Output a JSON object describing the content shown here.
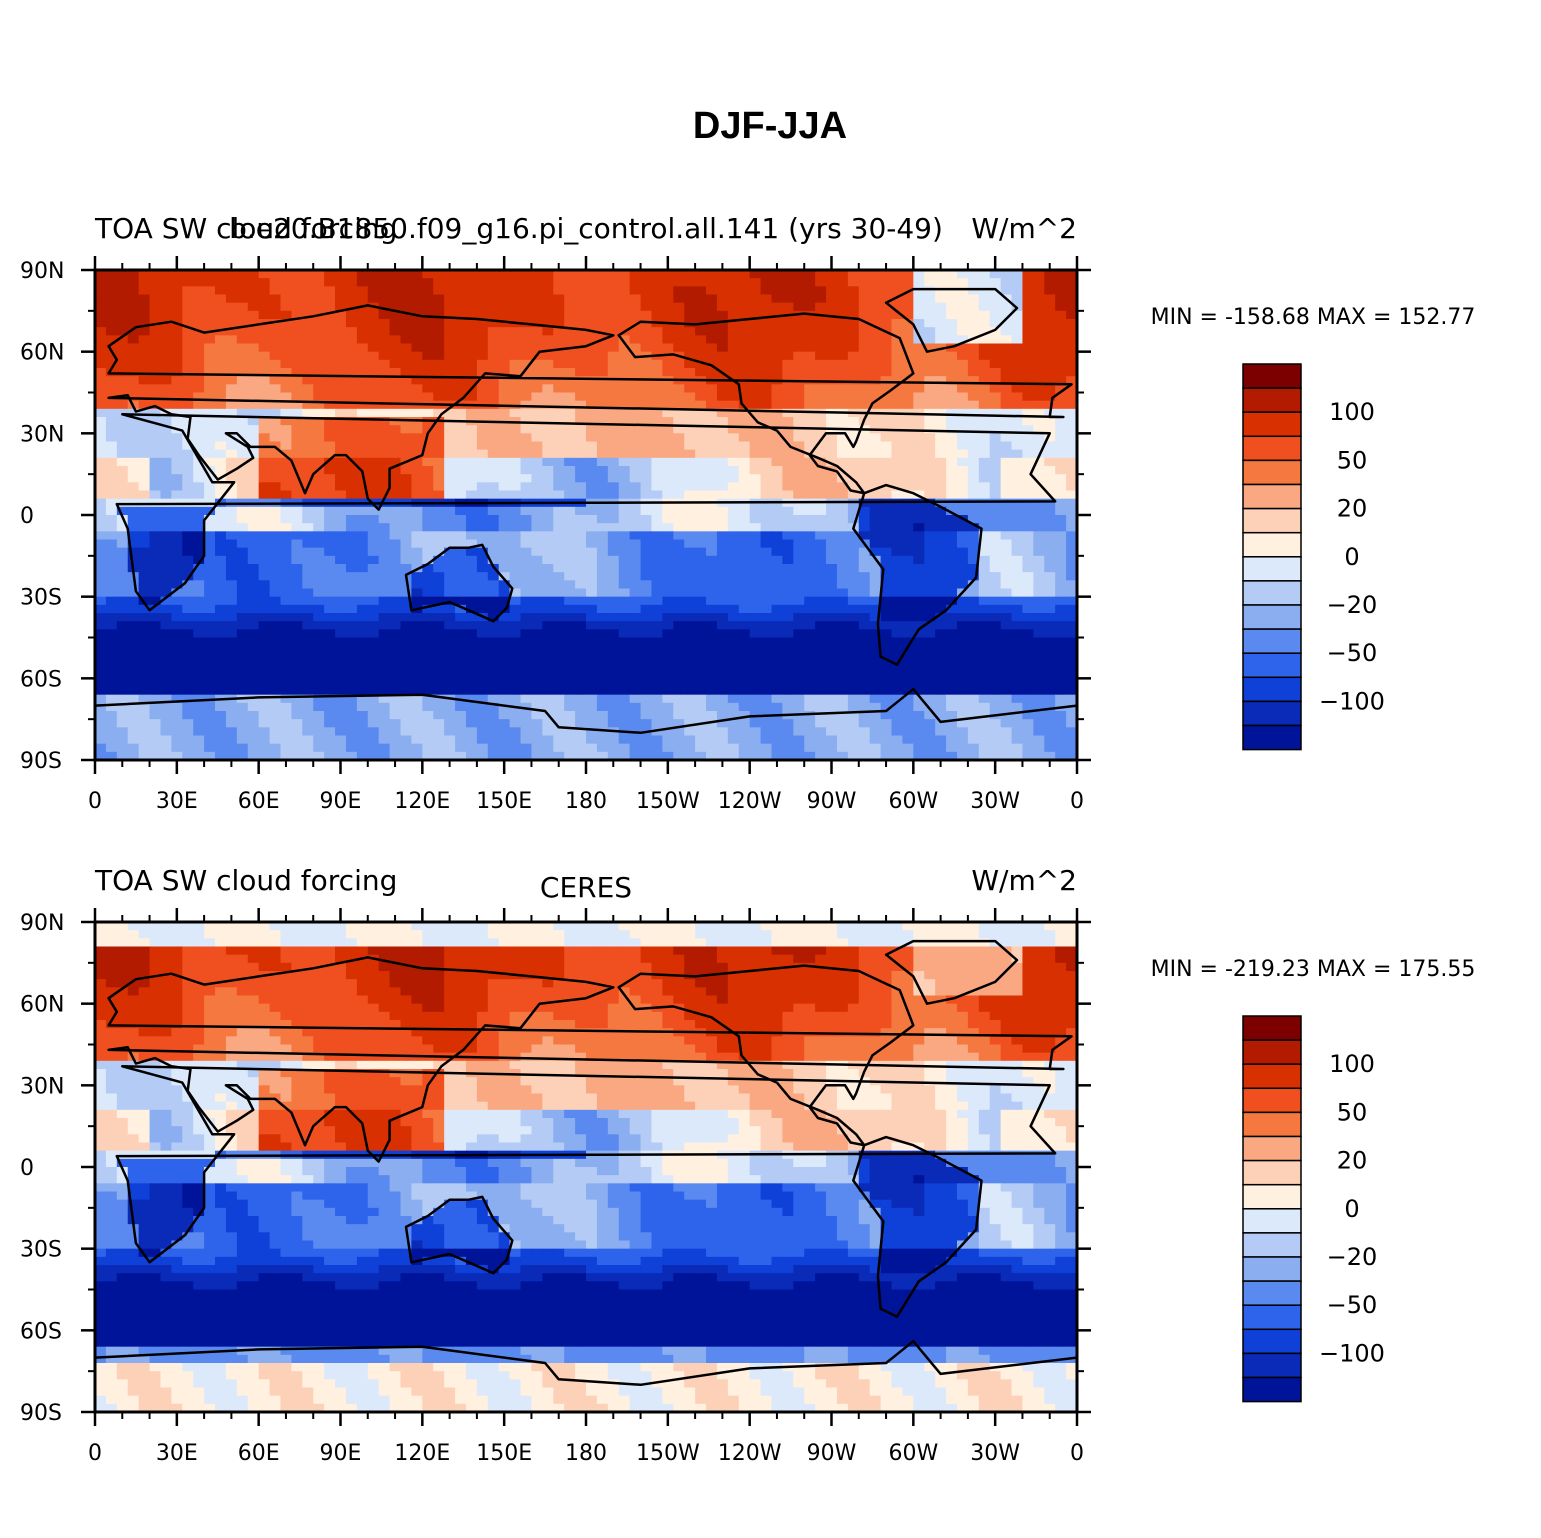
{
  "figure": {
    "title": "DJF-JJA"
  },
  "panels": [
    {
      "id": "model",
      "left_label": "TOA SW cloud forcing",
      "center_label": "b.e20.B1850.f09_g16.pi_control.all.141 (yrs 30-49)",
      "right_label": "W/m^2",
      "min_max_text": "MIN = -158.68  MAX = 152.77",
      "style": "model"
    },
    {
      "id": "obs",
      "left_label": "TOA SW cloud forcing",
      "center_label": "CERES",
      "right_label": "W/m^2",
      "min_max_text": "MIN = -219.23  MAX = 175.55",
      "style": "obs"
    }
  ],
  "axes": {
    "lat_ticks": [
      "90N",
      "60N",
      "30N",
      "0",
      "30S",
      "60S",
      "90S"
    ],
    "lon_ticks": [
      "0",
      "30E",
      "60E",
      "90E",
      "120E",
      "150E",
      "180",
      "150W",
      "120W",
      "90W",
      "60W",
      "30W",
      "0"
    ]
  },
  "colorbar": {
    "labels": [
      "100",
      "50",
      "20",
      "0",
      "-20",
      "-50",
      "-100"
    ],
    "colors": [
      "#7d0000",
      "#b31b00",
      "#d83000",
      "#f05020",
      "#f57840",
      "#f9a882",
      "#fdd0b8",
      "#fff0e0",
      "#dce9fb",
      "#b4ccf5",
      "#8aaef0",
      "#5a8af0",
      "#2e64ec",
      "#0f40d8",
      "#0a2ab8",
      "#00149a"
    ]
  },
  "chart_data": [
    {
      "type": "heatmap",
      "title": "DJF-JJA",
      "name": "TOA SW cloud forcing — b.e20.B1850.f09_g16.pi_control.all.141 (yrs 30-49)",
      "units": "W/m^2",
      "min": -158.68,
      "max": 152.77,
      "contour_levels": [
        -120,
        -100,
        -80,
        -65,
        -50,
        -35,
        -20,
        -10,
        0,
        10,
        20,
        35,
        50,
        65,
        80,
        100,
        120
      ],
      "xlim": [
        0,
        360
      ],
      "ylim": [
        -90,
        90
      ]
    },
    {
      "type": "heatmap",
      "title": "DJF-JJA",
      "name": "TOA SW cloud forcing — CERES",
      "units": "W/m^2",
      "min": -219.23,
      "max": 175.55,
      "contour_levels": [
        -120,
        -100,
        -80,
        -65,
        -50,
        -35,
        -20,
        -10,
        0,
        10,
        20,
        35,
        50,
        65,
        80,
        100,
        120
      ],
      "xlim": [
        0,
        360
      ],
      "ylim": [
        -90,
        90
      ]
    }
  ]
}
